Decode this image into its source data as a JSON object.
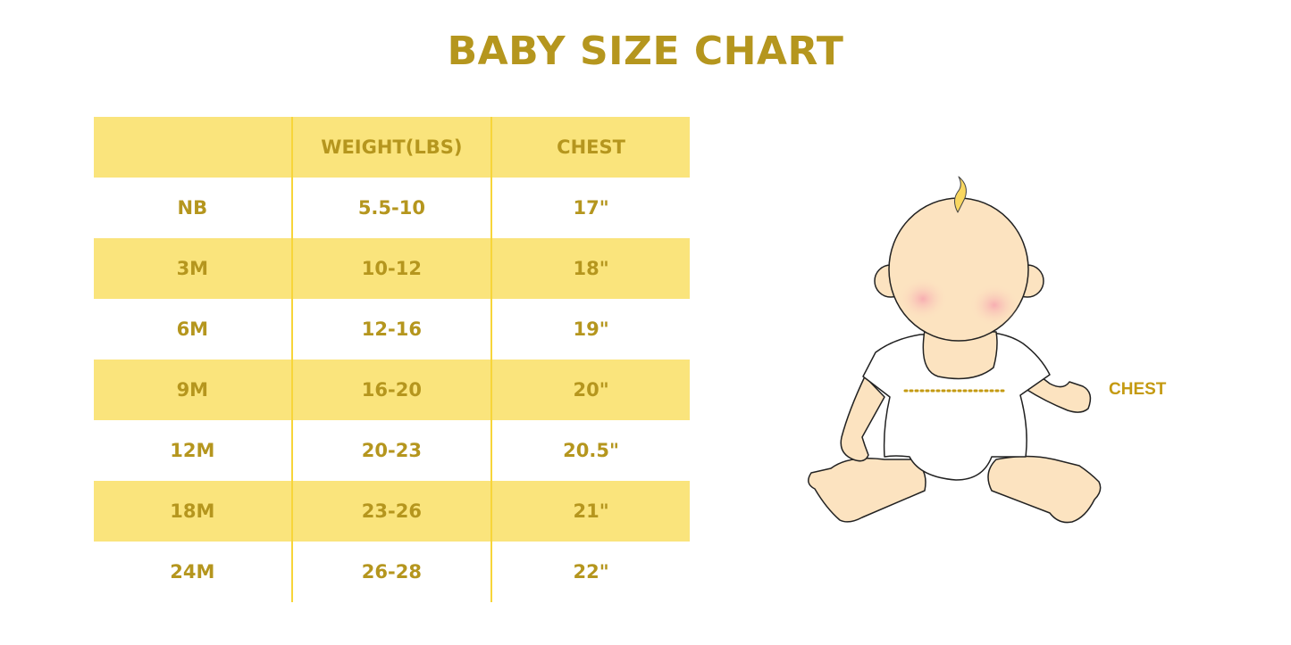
{
  "title": "BABY SIZE CHART",
  "table": {
    "headers": [
      "",
      "WEIGHT(LBS)",
      "CHEST"
    ],
    "rows": [
      [
        "NB",
        "5.5-10",
        "17\""
      ],
      [
        "3M",
        "10-12",
        "18\""
      ],
      [
        "6M",
        "12-16",
        "19\""
      ],
      [
        "9M",
        "16-20",
        "20\""
      ],
      [
        "12M",
        "20-23",
        "20.5\""
      ],
      [
        "18M",
        "23-26",
        "21\""
      ],
      [
        "24M",
        "26-28",
        "22\""
      ]
    ]
  },
  "illustration": {
    "label": "CHEST"
  },
  "colors": {
    "accent": "#B5961E",
    "stripe": "#FAE47C",
    "divider": "#F7D53A"
  }
}
